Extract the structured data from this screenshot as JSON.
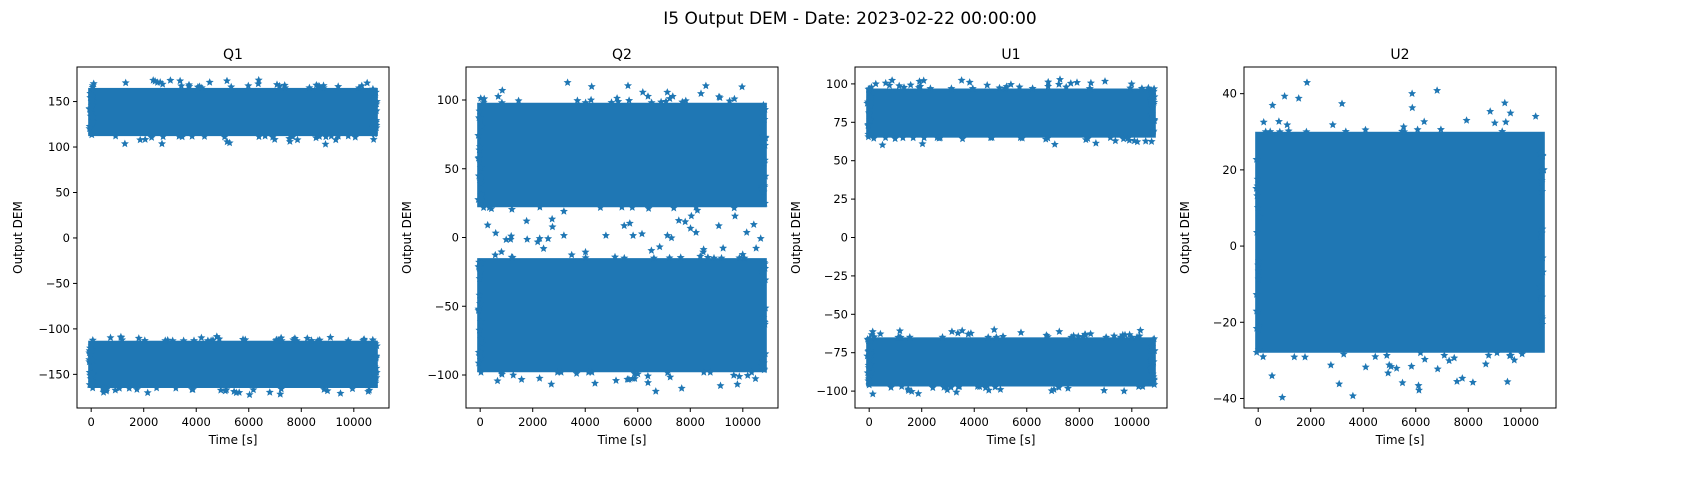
{
  "figure": {
    "title": "I5 Output DEM - Date: 2023-02-22 00:00:00",
    "marker_color": "#1f77b4",
    "marker": "star"
  },
  "chart_data": [
    {
      "type": "scatter",
      "title": "Q1",
      "xlabel": "Time [s]",
      "ylabel": "Output DEM",
      "xlim": [
        -540,
        11340
      ],
      "ylim": [
        -187,
        188
      ],
      "xticks": [
        0,
        2000,
        4000,
        6000,
        8000,
        10000
      ],
      "yticks": [
        -150,
        -100,
        -50,
        0,
        50,
        100,
        150
      ],
      "ytick_labels": [
        "−150",
        "−100",
        "−50",
        "0",
        "50",
        "100",
        "150"
      ],
      "x_range": [
        0,
        10800
      ],
      "bands": [
        {
          "core": [
            112,
            165
          ],
          "extent": [
            103,
            175
          ]
        },
        {
          "core": [
            -165,
            -113
          ],
          "extent": [
            -173,
            -108
          ]
        }
      ]
    },
    {
      "type": "scatter",
      "title": "Q2",
      "xlabel": "Time [s]",
      "ylabel": "Output DEM",
      "xlim": [
        -540,
        11340
      ],
      "ylim": [
        -124,
        124
      ],
      "xticks": [
        0,
        2000,
        4000,
        6000,
        8000,
        10000
      ],
      "yticks": [
        -100,
        -50,
        0,
        50,
        100
      ],
      "ytick_labels": [
        "−100",
        "−50",
        "0",
        "50",
        "100"
      ],
      "x_range": [
        0,
        10800
      ],
      "bands": [
        {
          "core": [
            22,
            98
          ],
          "extent": [
            -5,
            113
          ]
        },
        {
          "core": [
            -98,
            -15
          ],
          "extent": [
            -113,
            5
          ]
        }
      ]
    },
    {
      "type": "scatter",
      "title": "U1",
      "xlabel": "Time [s]",
      "ylabel": "Output DEM",
      "xlim": [
        -540,
        11340
      ],
      "ylim": [
        -111,
        111
      ],
      "xticks": [
        0,
        2000,
        4000,
        6000,
        8000,
        10000
      ],
      "yticks": [
        -100,
        -75,
        -50,
        -25,
        0,
        25,
        50,
        75,
        100
      ],
      "ytick_labels": [
        "−100",
        "−75",
        "−50",
        "−25",
        "0",
        "25",
        "50",
        "75",
        "100"
      ],
      "x_range": [
        0,
        10800
      ],
      "bands": [
        {
          "core": [
            65,
            97
          ],
          "extent": [
            60,
            103
          ]
        },
        {
          "core": [
            -97,
            -65
          ],
          "extent": [
            -102,
            -60
          ]
        }
      ]
    },
    {
      "type": "scatter",
      "title": "U2",
      "xlabel": "Time [s]",
      "ylabel": "Output DEM",
      "xlim": [
        -540,
        11340
      ],
      "ylim": [
        -42.5,
        47
      ],
      "xticks": [
        0,
        2000,
        4000,
        6000,
        8000,
        10000
      ],
      "yticks": [
        -40,
        -20,
        0,
        20,
        40
      ],
      "ytick_labels": [
        "−40",
        "−20",
        "0",
        "20",
        "40"
      ],
      "x_range": [
        0,
        10800
      ],
      "bands": [
        {
          "core": [
            -28,
            30
          ],
          "extent": [
            -40,
            43
          ]
        }
      ]
    }
  ]
}
